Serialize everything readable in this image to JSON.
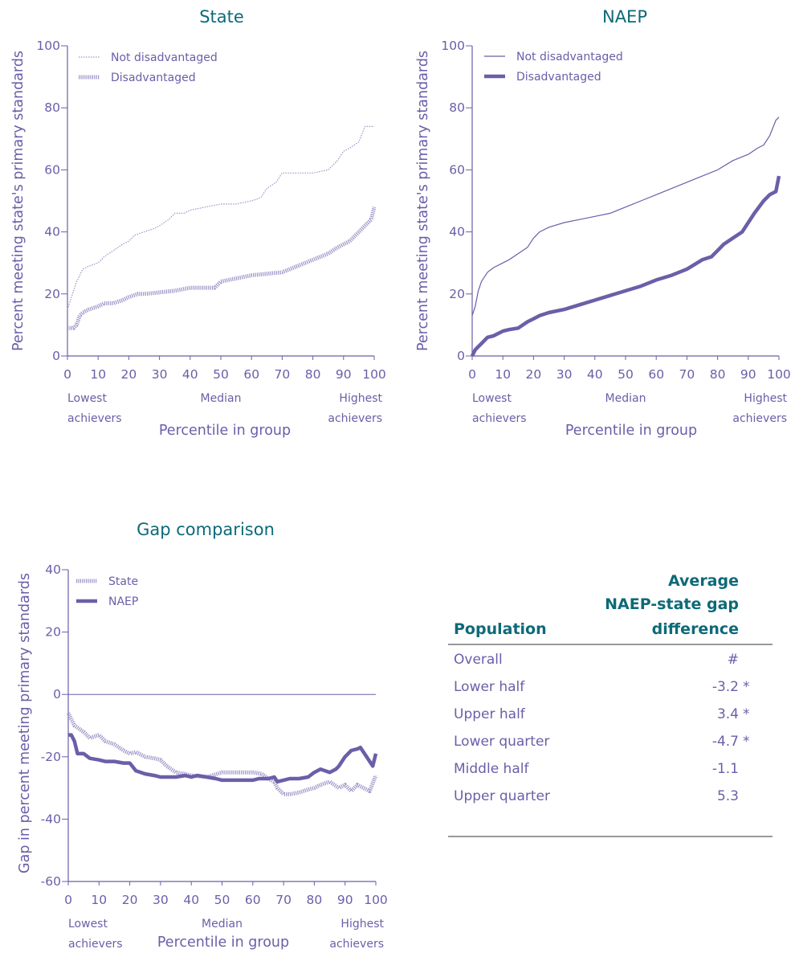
{
  "colors": {
    "title": "#0d6a78",
    "axis": "#6a5fa8",
    "state_series": "#9c96c8",
    "naep_series": "#6a5fa8"
  },
  "chart_data": [
    {
      "type": "line",
      "title": "State",
      "ylabel": "Percent meeting state's primary standards",
      "xlabel": "Percentile in group",
      "ylim": [
        0,
        100
      ],
      "xlim": [
        0,
        100
      ],
      "y_ticks": [
        "0",
        "20",
        "40",
        "60",
        "80",
        "100"
      ],
      "x_ticks": [
        "0",
        "10",
        "20",
        "30",
        "40",
        "50",
        "60",
        "70",
        "80",
        "90",
        "100"
      ],
      "x_notes": {
        "low": [
          "Lowest",
          "achievers"
        ],
        "mid": [
          "Median"
        ],
        "high": [
          "Highest",
          "achievers"
        ]
      },
      "legend_position": "top-left",
      "series": [
        {
          "name": "Not disadvantaged",
          "style": "dotted-thin",
          "x": [
            0,
            1,
            2,
            3,
            5,
            7,
            10,
            12,
            15,
            18,
            20,
            22,
            25,
            28,
            30,
            33,
            35,
            38,
            40,
            45,
            50,
            55,
            60,
            63,
            65,
            68,
            70,
            75,
            80,
            85,
            88,
            90,
            92,
            95,
            97,
            100
          ],
          "y": [
            15,
            18,
            21,
            24,
            28,
            29,
            30,
            32,
            34,
            36,
            37,
            39,
            40,
            41,
            42,
            44,
            46,
            46,
            47,
            48,
            49,
            49,
            50,
            51,
            54,
            56,
            59,
            59,
            59,
            60,
            63,
            66,
            67,
            69,
            74,
            74
          ]
        },
        {
          "name": "Disadvantaged",
          "style": "dotted-thick",
          "x": [
            0,
            2,
            3,
            4,
            5,
            7,
            10,
            12,
            15,
            18,
            20,
            23,
            25,
            30,
            35,
            40,
            45,
            48,
            50,
            55,
            60,
            65,
            70,
            75,
            80,
            85,
            88,
            90,
            92,
            95,
            97,
            99,
            100
          ],
          "y": [
            9,
            9,
            10,
            13,
            14,
            15,
            16,
            17,
            17,
            18,
            19,
            20,
            20,
            20.5,
            21,
            22,
            22,
            22,
            24,
            25,
            26,
            26.5,
            27,
            29,
            31,
            33,
            35,
            36,
            37,
            40,
            42,
            44,
            48
          ]
        }
      ]
    },
    {
      "type": "line",
      "title": "NAEP",
      "ylabel": "Percent meeting state's primary standards",
      "xlabel": "Percentile in group",
      "ylim": [
        0,
        100
      ],
      "xlim": [
        0,
        100
      ],
      "y_ticks": [
        "0",
        "20",
        "40",
        "60",
        "80",
        "100"
      ],
      "x_ticks": [
        "0",
        "10",
        "20",
        "30",
        "40",
        "50",
        "60",
        "70",
        "80",
        "90",
        "100"
      ],
      "x_notes": {
        "low": [
          "Lowest",
          "achievers"
        ],
        "mid": [
          "Median"
        ],
        "high": [
          "Highest",
          "achievers"
        ]
      },
      "legend_position": "top-left",
      "series": [
        {
          "name": "Not disadvantaged",
          "style": "solid-thin",
          "x": [
            0,
            1,
            2,
            3,
            5,
            7,
            10,
            12,
            15,
            18,
            20,
            22,
            25,
            30,
            35,
            40,
            45,
            50,
            55,
            60,
            65,
            70,
            75,
            80,
            85,
            90,
            93,
            95,
            97,
            99,
            100
          ],
          "y": [
            13,
            16,
            21,
            24,
            27,
            28.5,
            30,
            31,
            33,
            35,
            38,
            40,
            41.5,
            43,
            44,
            45,
            46,
            48,
            50,
            52,
            54,
            56,
            58,
            60,
            63,
            65,
            67,
            68,
            71,
            76,
            77
          ]
        },
        {
          "name": "Disadvantaged",
          "style": "solid-thick",
          "x": [
            0,
            1,
            2,
            3,
            5,
            7,
            10,
            12,
            15,
            18,
            20,
            22,
            25,
            30,
            35,
            40,
            45,
            50,
            55,
            60,
            65,
            70,
            75,
            78,
            80,
            82,
            85,
            88,
            90,
            92,
            95,
            97,
            99,
            100
          ],
          "y": [
            0,
            2,
            3,
            4,
            6,
            6.5,
            8,
            8.5,
            9,
            11,
            12,
            13,
            14,
            15,
            16.5,
            18,
            19.5,
            21,
            22.5,
            24.5,
            26,
            28,
            31,
            32,
            34,
            36,
            38,
            40,
            43,
            46,
            50,
            52,
            53,
            58
          ]
        }
      ]
    },
    {
      "type": "line",
      "title": "Gap comparison",
      "ylabel": "Gap in percent meeting primary standards",
      "xlabel": "Percentile in group",
      "ylim": [
        -60,
        40
      ],
      "xlim": [
        0,
        100
      ],
      "y_ticks": [
        "-60",
        "-40",
        "-20",
        "0",
        "20",
        "40"
      ],
      "x_ticks": [
        "0",
        "10",
        "20",
        "30",
        "40",
        "50",
        "60",
        "70",
        "80",
        "90",
        "100"
      ],
      "x_notes": {
        "low": [
          "Lowest",
          "achievers"
        ],
        "mid": [
          "Median"
        ],
        "high": [
          "Highest",
          "achievers"
        ]
      },
      "legend_position": "top-left",
      "series": [
        {
          "name": "State",
          "style": "dotted-thick",
          "x": [
            0,
            2,
            5,
            7,
            10,
            12,
            15,
            18,
            20,
            22,
            25,
            28,
            30,
            32,
            35,
            38,
            40,
            45,
            50,
            55,
            60,
            63,
            65,
            67,
            68,
            70,
            72,
            75,
            78,
            80,
            82,
            85,
            88,
            90,
            92,
            94,
            96,
            98,
            100
          ],
          "y": [
            -6,
            -10,
            -12,
            -14,
            -13,
            -15,
            -16,
            -18,
            -19,
            -18.5,
            -20,
            -20.5,
            -21,
            -23,
            -25,
            -25.5,
            -26,
            -26.5,
            -25,
            -25,
            -25,
            -25.5,
            -27,
            -28,
            -30,
            -32,
            -32,
            -31.5,
            -30.5,
            -30,
            -29,
            -28,
            -30,
            -29,
            -31,
            -29,
            -30,
            -31,
            -26
          ]
        },
        {
          "name": "NAEP",
          "style": "solid-thick",
          "x": [
            0,
            1,
            2,
            3,
            5,
            7,
            10,
            12,
            15,
            18,
            20,
            22,
            25,
            28,
            30,
            32,
            35,
            38,
            40,
            42,
            45,
            48,
            50,
            55,
            60,
            62,
            65,
            67,
            68,
            70,
            72,
            75,
            78,
            80,
            82,
            85,
            87,
            88,
            90,
            92,
            94,
            95,
            97,
            99,
            100
          ],
          "y": [
            -13,
            -13,
            -15,
            -19,
            -19,
            -20.5,
            -21,
            -21.5,
            -21.5,
            -22,
            -22,
            -24.5,
            -25.5,
            -26,
            -26.5,
            -26.5,
            -26.5,
            -26,
            -26.5,
            -26,
            -26.5,
            -27,
            -27.5,
            -27.5,
            -27.5,
            -27,
            -27,
            -26.5,
            -28,
            -27.5,
            -27,
            -27,
            -26.5,
            -25,
            -24,
            -25,
            -24,
            -23,
            -20,
            -18,
            -17.5,
            -17,
            -20,
            -23,
            -19
          ]
        }
      ]
    }
  ],
  "table": {
    "header_population": "Population",
    "header_gap_lines": [
      "Average",
      "NAEP-state gap",
      "difference"
    ],
    "rows": [
      {
        "population": "Overall",
        "value": "#",
        "sig": ""
      },
      {
        "population": "Lower half",
        "value": "-3.2",
        "sig": "*"
      },
      {
        "population": "Upper half",
        "value": "3.4",
        "sig": "*"
      },
      {
        "population": "Lower quarter",
        "value": "-4.7",
        "sig": "*"
      },
      {
        "population": "Middle half",
        "value": "-1.1",
        "sig": ""
      },
      {
        "population": "Upper quarter",
        "value": "5.3",
        "sig": ""
      }
    ]
  }
}
